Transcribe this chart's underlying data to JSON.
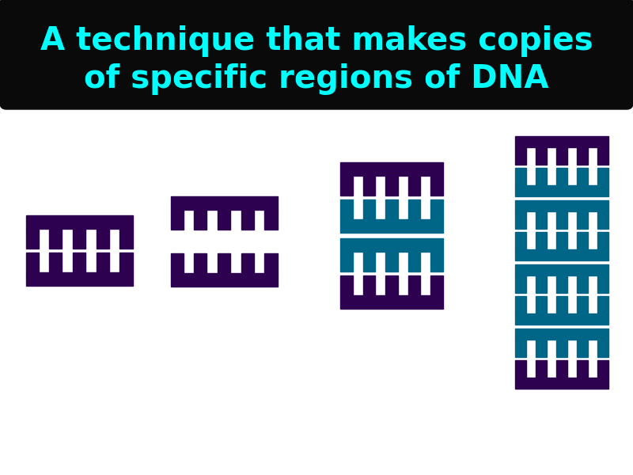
{
  "title_line1": "A technique that makes copies",
  "title_line2": "of specific regions of DNA",
  "title_color": "#00FFFF",
  "title_bg": "#0a0a0a",
  "bg_color": "#FFFFFF",
  "purple": "#2D0050",
  "teal": "#006688",
  "fig_width": 8.0,
  "fig_height": 6.0,
  "dpi": 100
}
